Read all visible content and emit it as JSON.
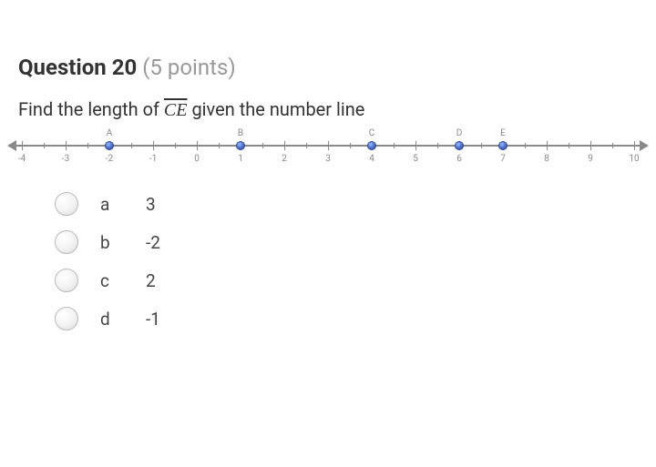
{
  "question": {
    "title": "Question 20",
    "points_text": "(5 points)",
    "prompt_pre": "Find the length of ",
    "prompt_segment": "CE",
    "prompt_post": " given the number line"
  },
  "numberline": {
    "min": -4,
    "max": 10,
    "tick_labels": [
      "-4",
      "-3",
      "-2",
      "-1",
      "0",
      "1",
      "2",
      "3",
      "4",
      "5",
      "6",
      "7",
      "8",
      "9",
      "10"
    ],
    "axis_color": "#8a8a8a",
    "label_color": "#888888",
    "label_fontsize": 10,
    "point_fill": "#4a6fd0",
    "points": [
      {
        "label": "A",
        "x": -2
      },
      {
        "label": "B",
        "x": 1
      },
      {
        "label": "C",
        "x": 4
      },
      {
        "label": "D",
        "x": 6
      },
      {
        "label": "E",
        "x": 7
      }
    ]
  },
  "choices": [
    {
      "letter": "a",
      "value": "3"
    },
    {
      "letter": "b",
      "value": "-2"
    },
    {
      "letter": "c",
      "value": "2"
    },
    {
      "letter": "d",
      "value": "-1"
    }
  ],
  "style": {
    "title_fontsize": 24,
    "prompt_fontsize": 20,
    "choice_fontsize": 19,
    "title_color": "#333333",
    "points_color": "#999999",
    "radio_border": "#bbbbbb"
  }
}
